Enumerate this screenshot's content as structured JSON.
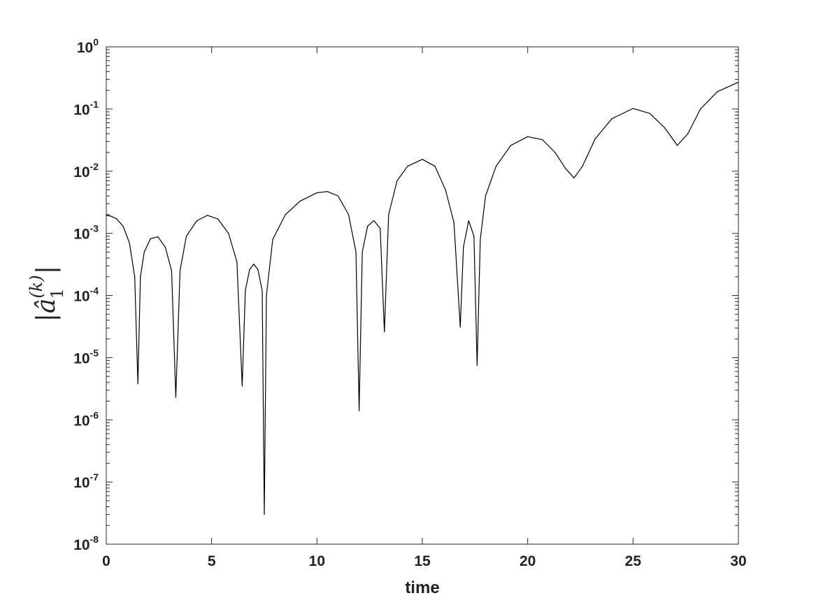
{
  "chart_data": {
    "type": "line",
    "title": "",
    "xlabel": "time",
    "ylabel": "|â₁^{(k)}|",
    "ylabel_parts": {
      "bar_left": "|",
      "base": "â",
      "subscript": "1",
      "superscript": "(k)",
      "bar_right": "|"
    },
    "xlim": [
      0,
      30
    ],
    "ylim": [
      1e-08,
      1
    ],
    "yscale": "log",
    "grid": false,
    "x_ticks": [
      0,
      5,
      10,
      15,
      20,
      25,
      30
    ],
    "x_tick_labels": [
      "0",
      "5",
      "10",
      "15",
      "20",
      "25",
      "30"
    ],
    "y_ticks": [
      1e-08,
      1e-07,
      1e-06,
      1e-05,
      0.0001,
      0.001,
      0.01,
      0.1,
      1
    ],
    "y_tick_labels": [
      {
        "base": "10",
        "exp": "-8"
      },
      {
        "base": "10",
        "exp": "-7"
      },
      {
        "base": "10",
        "exp": "-6"
      },
      {
        "base": "10",
        "exp": "-5"
      },
      {
        "base": "10",
        "exp": "-4"
      },
      {
        "base": "10",
        "exp": "-3"
      },
      {
        "base": "10",
        "exp": "-2"
      },
      {
        "base": "10",
        "exp": "-1"
      },
      {
        "base": "10",
        "exp": "0"
      }
    ],
    "series": [
      {
        "color": "#000000",
        "x": [
          0,
          0.2,
          0.5,
          0.8,
          1.1,
          1.35,
          1.5,
          1.62,
          1.8,
          2.1,
          2.45,
          2.8,
          3.1,
          3.3,
          3.5,
          3.8,
          4.3,
          4.8,
          5.3,
          5.8,
          6.2,
          6.45,
          6.6,
          6.8,
          7.0,
          7.2,
          7.4,
          7.5,
          7.6,
          7.9,
          8.5,
          9.2,
          10.0,
          10.5,
          11.0,
          11.5,
          11.85,
          12.0,
          12.15,
          12.4,
          12.7,
          13.0,
          13.2,
          13.4,
          13.8,
          14.3,
          15.0,
          15.6,
          16.1,
          16.5,
          16.8,
          16.95,
          17.2,
          17.45,
          17.6,
          17.75,
          18.0,
          18.5,
          19.2,
          20.0,
          20.7,
          21.3,
          21.8,
          22.2,
          22.6,
          23.2,
          24.0,
          25.0,
          25.8,
          26.5,
          27.1,
          27.6,
          28.2,
          29.0,
          30.0
        ],
        "y": [
          0.00195,
          0.0019,
          0.0017,
          0.0013,
          0.0007,
          0.0002,
          3.8e-06,
          0.0002,
          0.0005,
          0.00082,
          0.00088,
          0.0006,
          0.00025,
          2.3e-06,
          0.00025,
          0.0009,
          0.0016,
          0.00195,
          0.0017,
          0.001,
          0.00035,
          3.5e-06,
          0.00012,
          0.00026,
          0.00032,
          0.00026,
          0.00012,
          3e-08,
          0.0001,
          0.0008,
          0.002,
          0.0033,
          0.0045,
          0.0047,
          0.004,
          0.002,
          0.0005,
          1.4e-06,
          0.0005,
          0.0013,
          0.0016,
          0.0012,
          2.6e-05,
          0.002,
          0.007,
          0.012,
          0.0155,
          0.012,
          0.005,
          0.0015,
          3.1e-05,
          0.0006,
          0.0016,
          0.0009,
          7.5e-06,
          0.0008,
          0.004,
          0.012,
          0.026,
          0.036,
          0.032,
          0.02,
          0.011,
          0.0078,
          0.012,
          0.033,
          0.07,
          0.102,
          0.085,
          0.05,
          0.026,
          0.04,
          0.1,
          0.19,
          0.27
        ]
      }
    ]
  }
}
